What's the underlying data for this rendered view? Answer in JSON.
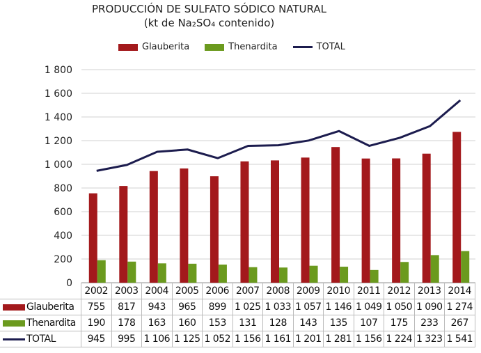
{
  "chart_data": {
    "type": "bar",
    "title": "PRODUCCIÓN DE SULFATO SÓDICO NATURAL",
    "subtitle": "(kt de Na₂SO₄ contenido)",
    "xlabel": "",
    "ylabel": "",
    "ylim": [
      0,
      1800
    ],
    "yticks": [
      "0",
      "200",
      "400",
      "600",
      "800",
      "1 000",
      "1 200",
      "1 400",
      "1 600",
      "1 800"
    ],
    "grid": true,
    "legend_position": "top",
    "categories": [
      "2002",
      "2003",
      "2004",
      "2005",
      "2006",
      "2007",
      "2008",
      "2009",
      "2010",
      "2011",
      "2012",
      "2013",
      "2014"
    ],
    "series": [
      {
        "name": "Glauberita",
        "kind": "bar",
        "color": "#a3191c",
        "values": [
          755,
          817,
          943,
          965,
          899,
          1025,
          1033,
          1057,
          1146,
          1049,
          1050,
          1090,
          1274
        ],
        "labels": [
          "755",
          "817",
          "943",
          "965",
          "899",
          "1 025",
          "1 033",
          "1 057",
          "1 146",
          "1 049",
          "1 050",
          "1 090",
          "1 274"
        ]
      },
      {
        "name": "Thenardita",
        "kind": "bar",
        "color": "#6b9a1e",
        "values": [
          190,
          178,
          163,
          160,
          153,
          131,
          128,
          143,
          135,
          107,
          175,
          233,
          267
        ],
        "labels": [
          "190",
          "178",
          "163",
          "160",
          "153",
          "131",
          "128",
          "143",
          "135",
          "107",
          "175",
          "233",
          "267"
        ]
      },
      {
        "name": "TOTAL",
        "kind": "line",
        "color": "#1c1c4e",
        "values": [
          945,
          995,
          1106,
          1125,
          1052,
          1156,
          1161,
          1201,
          1281,
          1156,
          1224,
          1323,
          1541
        ],
        "labels": [
          "945",
          "995",
          "1 106",
          "1 125",
          "1 052",
          "1 156",
          "1 161",
          "1 201",
          "1 281",
          "1 156",
          "1 224",
          "1 323",
          "1 541"
        ]
      }
    ]
  }
}
